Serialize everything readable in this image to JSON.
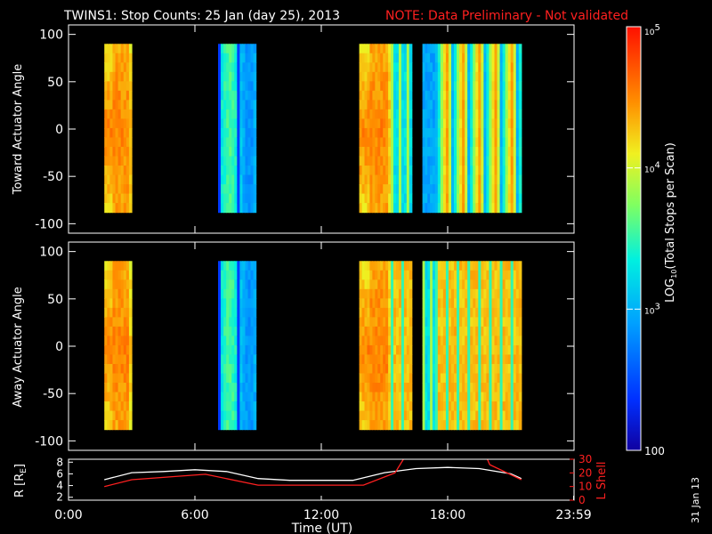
{
  "title": "TWINS1: Stop Counts: 25 Jan (day  25), 2013",
  "note": "NOTE: Data Preliminary - Not validated",
  "date_stamp": "31 Jan 13",
  "colors": {
    "note": "#ff2020",
    "frame": "#ffffff",
    "background": "#000000",
    "r_line": "#ffffff",
    "l_line": "#ff2020"
  },
  "chart_data": [
    {
      "type": "heatmap",
      "panel": "toward",
      "ylabel": "Toward Actuator Angle",
      "ylim": [
        -110,
        110
      ],
      "yticks": [
        "100",
        "50",
        "0",
        "-50",
        "-100"
      ],
      "ytick_values": [
        100,
        50,
        0,
        -50,
        -100
      ],
      "xlim": [
        0,
        24
      ],
      "angle_range": [
        -88,
        90
      ],
      "blocks": [
        {
          "start": 1.7,
          "end": 3.0,
          "style": "orange"
        },
        {
          "start": 7.1,
          "end": 8.9,
          "style": "cyan"
        },
        {
          "start": 13.8,
          "end": 15.3,
          "style": "orange"
        },
        {
          "start": 15.3,
          "end": 16.3,
          "style": "cyanmix"
        },
        {
          "start": 16.8,
          "end": 17.4,
          "style": "blue"
        },
        {
          "start": 17.4,
          "end": 21.5,
          "style": "mixed"
        }
      ]
    },
    {
      "type": "heatmap",
      "panel": "away",
      "ylabel": "Away Actuator Angle",
      "ylim": [
        -110,
        110
      ],
      "yticks": [
        "100",
        "50",
        "0",
        "-50",
        "-100"
      ],
      "ytick_values": [
        100,
        50,
        0,
        -50,
        -100
      ],
      "xlim": [
        0,
        24
      ],
      "angle_range": [
        -88,
        90
      ],
      "blocks": [
        {
          "start": 1.7,
          "end": 3.0,
          "style": "orange"
        },
        {
          "start": 7.1,
          "end": 8.9,
          "style": "cyan"
        },
        {
          "start": 13.8,
          "end": 15.3,
          "style": "orange"
        },
        {
          "start": 15.3,
          "end": 16.3,
          "style": "orangemix"
        },
        {
          "start": 16.8,
          "end": 17.4,
          "style": "cyanmix"
        },
        {
          "start": 17.4,
          "end": 21.5,
          "style": "orangemix"
        }
      ]
    },
    {
      "type": "line",
      "panel": "orbit",
      "ylabel": "R [R",
      "ylabel_sub": "E",
      "ylabel_end": "]",
      "y2label": "L Shell",
      "xlabel": "Time (UT)",
      "xticks": [
        "0:00",
        "6:00",
        "12:00",
        "18:00",
        "23:59"
      ],
      "xtick_values": [
        0,
        6,
        12,
        18,
        23.98
      ],
      "ylim": [
        1.5,
        8.5
      ],
      "yticks": [
        "8",
        "6",
        "4",
        "2"
      ],
      "ytick_values": [
        8,
        6,
        4,
        2
      ],
      "y2lim": [
        0,
        30
      ],
      "y2ticks": [
        "30",
        "20",
        "10",
        "0"
      ],
      "y2tick_values": [
        30,
        20,
        10,
        0
      ],
      "series": [
        {
          "axis": "left",
          "x": [
            1.7,
            3,
            4.5,
            6,
            7.5,
            9,
            10.5,
            12,
            13.5,
            15,
            16.5,
            18,
            19.5,
            21,
            21.5
          ],
          "y": [
            5.0,
            6.2,
            6.4,
            6.7,
            6.4,
            5.2,
            4.9,
            4.9,
            4.9,
            6.2,
            6.9,
            7.1,
            6.9,
            6.0,
            5.2
          ]
        },
        {
          "axis": "right",
          "x": [
            1.7,
            3.0,
            6.5,
            9.0,
            14.0,
            15.5,
            16.3,
            19.6,
            20.0,
            21.5
          ],
          "y": [
            10,
            15,
            19,
            11,
            11,
            20,
            40,
            40,
            26,
            15
          ]
        }
      ]
    }
  ],
  "colorbar": {
    "label_prefix": "LOG",
    "label_sub": "10",
    "label_suffix": "(Total Stops per Scan)",
    "range": [
      100,
      100000
    ],
    "tick_labels": [
      {
        "base": "10",
        "exp": "5",
        "value": 100000
      },
      {
        "base": "10",
        "exp": "4",
        "value": 10000
      },
      {
        "base": "10",
        "exp": "3",
        "value": 1000
      },
      {
        "plain": "100",
        "value": 100
      }
    ]
  }
}
